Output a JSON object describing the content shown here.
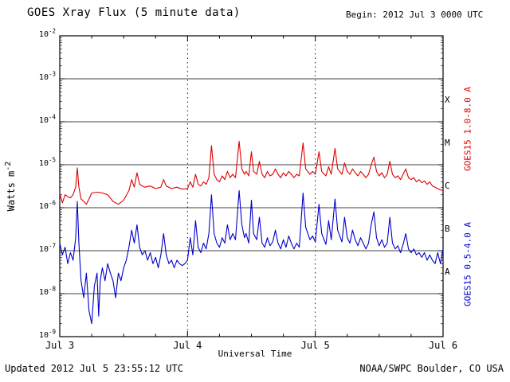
{
  "header": {
    "title": "GOES Xray Flux (5 minute data)",
    "begin": "Begin: 2012 Jul 3 0000 UTC"
  },
  "footer": {
    "updated": "Updated 2012 Jul 5 23:55:12 UTC",
    "credit": "NOAA/SWPC Boulder, CO USA"
  },
  "axes": {
    "xlabel": "Universal Time",
    "ylabel_main": "Watts m",
    "ylabel_exp": "-2"
  },
  "chart_data": {
    "type": "line",
    "title": "GOES Xray Flux (5 minute data)",
    "xlabel": "Universal Time",
    "ylabel": "Watts m^-2",
    "x_unit_hours_since": "2012 Jul 3 0000 UTC",
    "xlim": [
      0,
      72
    ],
    "ylog_exponent_range": [
      -2,
      -9
    ],
    "grid": "horizontal solid per decade, vertical dotted at day boundaries",
    "x_ticks": [
      {
        "t": 0,
        "label": "Jul 3"
      },
      {
        "t": 24,
        "label": "Jul 4"
      },
      {
        "t": 48,
        "label": "Jul 5"
      },
      {
        "t": 72,
        "label": "Jul 6"
      }
    ],
    "y_tick_exponents": [
      -2,
      -3,
      -4,
      -5,
      -6,
      -7,
      -8,
      -9
    ],
    "flare_classes": [
      {
        "label": "X",
        "log_mid": -3.5
      },
      {
        "label": "M",
        "log_mid": -4.5
      },
      {
        "label": "C",
        "log_mid": -5.5
      },
      {
        "label": "B",
        "log_mid": -6.5
      },
      {
        "label": "A",
        "log_mid": -7.5
      }
    ],
    "series": [
      {
        "name": "GOES15 1.0-8.0 A",
        "color": "#dd0000",
        "points": [
          [
            0,
            2.2e-06
          ],
          [
            0.5,
            1.3e-06
          ],
          [
            1,
            2e-06
          ],
          [
            1.5,
            1.8e-06
          ],
          [
            2,
            1.7e-06
          ],
          [
            2.5,
            2e-06
          ],
          [
            3,
            3e-06
          ],
          [
            3.3,
            8.5e-06
          ],
          [
            3.6,
            3e-06
          ],
          [
            4,
            1.6e-06
          ],
          [
            4.5,
            1.4e-06
          ],
          [
            5,
            1.2e-06
          ],
          [
            5.5,
            1.6e-06
          ],
          [
            6,
            2.2e-06
          ],
          [
            7,
            2.3e-06
          ],
          [
            8,
            2.2e-06
          ],
          [
            9,
            2e-06
          ],
          [
            10,
            1.4e-06
          ],
          [
            11,
            1.2e-06
          ],
          [
            12,
            1.5e-06
          ],
          [
            13,
            2.5e-06
          ],
          [
            13.5,
            4.5e-06
          ],
          [
            14,
            3e-06
          ],
          [
            14.5,
            6.5e-06
          ],
          [
            15,
            3.5e-06
          ],
          [
            15.5,
            3.2e-06
          ],
          [
            16,
            3e-06
          ],
          [
            17,
            3.2e-06
          ],
          [
            18,
            2.8e-06
          ],
          [
            19,
            3e-06
          ],
          [
            19.5,
            4.5e-06
          ],
          [
            20,
            3.2e-06
          ],
          [
            21,
            2.8e-06
          ],
          [
            22,
            3e-06
          ],
          [
            23,
            2.7e-06
          ],
          [
            24,
            2.8e-06
          ],
          [
            24.5,
            4e-06
          ],
          [
            25,
            3e-06
          ],
          [
            25.5,
            6e-06
          ],
          [
            26,
            3.5e-06
          ],
          [
            26.5,
            3.2e-06
          ],
          [
            27,
            4e-06
          ],
          [
            27.5,
            3.5e-06
          ],
          [
            28,
            5e-06
          ],
          [
            28.5,
            2.8e-05
          ],
          [
            29,
            6e-06
          ],
          [
            29.5,
            4.5e-06
          ],
          [
            30,
            4e-06
          ],
          [
            30.5,
            5.5e-06
          ],
          [
            31,
            4.5e-06
          ],
          [
            31.5,
            7e-06
          ],
          [
            32,
            5e-06
          ],
          [
            32.5,
            6e-06
          ],
          [
            33,
            5e-06
          ],
          [
            33.7,
            3.5e-05
          ],
          [
            34.2,
            8e-06
          ],
          [
            34.7,
            6e-06
          ],
          [
            35,
            7e-06
          ],
          [
            35.5,
            5.5e-06
          ],
          [
            36,
            2e-05
          ],
          [
            36.4,
            7e-06
          ],
          [
            37,
            6e-06
          ],
          [
            37.5,
            1.2e-05
          ],
          [
            38,
            6e-06
          ],
          [
            38.5,
            5e-06
          ],
          [
            39,
            7e-06
          ],
          [
            39.5,
            5.5e-06
          ],
          [
            40,
            6e-06
          ],
          [
            40.5,
            8e-06
          ],
          [
            41,
            6e-06
          ],
          [
            41.5,
            5e-06
          ],
          [
            42,
            6.5e-06
          ],
          [
            42.5,
            5.5e-06
          ],
          [
            43,
            7e-06
          ],
          [
            43.5,
            6e-06
          ],
          [
            44,
            5e-06
          ],
          [
            44.5,
            6e-06
          ],
          [
            45,
            5.5e-06
          ],
          [
            45.7,
            3.2e-05
          ],
          [
            46.2,
            8e-06
          ],
          [
            47,
            6e-06
          ],
          [
            47.5,
            7e-06
          ],
          [
            48,
            6e-06
          ],
          [
            48.7,
            2e-05
          ],
          [
            49.2,
            7e-06
          ],
          [
            50,
            5.5e-06
          ],
          [
            50.5,
            9e-06
          ],
          [
            51,
            6e-06
          ],
          [
            51.7,
            2.4e-05
          ],
          [
            52.2,
            8e-06
          ],
          [
            53,
            6e-06
          ],
          [
            53.5,
            1.1e-05
          ],
          [
            54,
            7e-06
          ],
          [
            54.5,
            6e-06
          ],
          [
            55,
            8e-06
          ],
          [
            55.5,
            6.5e-06
          ],
          [
            56,
            5.5e-06
          ],
          [
            56.5,
            7e-06
          ],
          [
            57,
            6e-06
          ],
          [
            57.5,
            5e-06
          ],
          [
            58,
            6e-06
          ],
          [
            58.5,
            1e-05
          ],
          [
            59,
            1.5e-05
          ],
          [
            59.5,
            7e-06
          ],
          [
            60,
            5.5e-06
          ],
          [
            60.5,
            6.5e-06
          ],
          [
            61,
            5e-06
          ],
          [
            61.5,
            6e-06
          ],
          [
            62,
            1.2e-05
          ],
          [
            62.5,
            6e-06
          ],
          [
            63,
            5e-06
          ],
          [
            63.5,
            5.5e-06
          ],
          [
            64,
            4.5e-06
          ],
          [
            64.5,
            6e-06
          ],
          [
            65,
            8e-06
          ],
          [
            65.5,
            5e-06
          ],
          [
            66,
            4.5e-06
          ],
          [
            66.5,
            5e-06
          ],
          [
            67,
            4e-06
          ],
          [
            67.5,
            4.5e-06
          ],
          [
            68,
            3.8e-06
          ],
          [
            68.5,
            4.2e-06
          ],
          [
            69,
            3.5e-06
          ],
          [
            69.5,
            4e-06
          ],
          [
            70,
            3.2e-06
          ],
          [
            70.5,
            3e-06
          ],
          [
            71,
            2.8e-06
          ],
          [
            71.5,
            2.6e-06
          ],
          [
            72,
            2.5e-06
          ]
        ]
      },
      {
        "name": "GOES15 0.5-4.0 A",
        "color": "#0000cc",
        "points": [
          [
            0,
            1.5e-07
          ],
          [
            0.5,
            8e-08
          ],
          [
            1,
            1.2e-07
          ],
          [
            1.5,
            5e-08
          ],
          [
            2,
            9e-08
          ],
          [
            2.5,
            6e-08
          ],
          [
            3,
            2e-07
          ],
          [
            3.3,
            1.4e-06
          ],
          [
            3.6,
            1.5e-07
          ],
          [
            4,
            2e-08
          ],
          [
            4.5,
            8e-09
          ],
          [
            5,
            3e-08
          ],
          [
            5.5,
            4e-09
          ],
          [
            6,
            2e-09
          ],
          [
            6.5,
            1.5e-08
          ],
          [
            7,
            3e-08
          ],
          [
            7.3,
            3e-09
          ],
          [
            7.6,
            2e-08
          ],
          [
            8,
            4e-08
          ],
          [
            8.5,
            2e-08
          ],
          [
            9,
            5e-08
          ],
          [
            9.5,
            3e-08
          ],
          [
            10,
            2e-08
          ],
          [
            10.5,
            8e-09
          ],
          [
            11,
            3e-08
          ],
          [
            11.5,
            2e-08
          ],
          [
            12,
            4e-08
          ],
          [
            12.5,
            6e-08
          ],
          [
            13,
            1.2e-07
          ],
          [
            13.5,
            3e-07
          ],
          [
            14,
            1.5e-07
          ],
          [
            14.5,
            4e-07
          ],
          [
            15,
            1.2e-07
          ],
          [
            15.5,
            8e-08
          ],
          [
            16,
            1e-07
          ],
          [
            16.5,
            6e-08
          ],
          [
            17,
            9e-08
          ],
          [
            17.5,
            5e-08
          ],
          [
            18,
            7e-08
          ],
          [
            18.5,
            4e-08
          ],
          [
            19,
            8e-08
          ],
          [
            19.5,
            2.5e-07
          ],
          [
            20,
            8e-08
          ],
          [
            20.5,
            5e-08
          ],
          [
            21,
            6e-08
          ],
          [
            21.5,
            4e-08
          ],
          [
            22,
            6e-08
          ],
          [
            22.5,
            5e-08
          ],
          [
            23,
            4.5e-08
          ],
          [
            23.5,
            5e-08
          ],
          [
            24,
            6e-08
          ],
          [
            24.5,
            2e-07
          ],
          [
            25,
            8e-08
          ],
          [
            25.5,
            5e-07
          ],
          [
            26,
            1.2e-07
          ],
          [
            26.5,
            9e-08
          ],
          [
            27,
            1.5e-07
          ],
          [
            27.5,
            1.1e-07
          ],
          [
            28,
            2.5e-07
          ],
          [
            28.5,
            2e-06
          ],
          [
            29,
            2.5e-07
          ],
          [
            29.5,
            1.5e-07
          ],
          [
            30,
            1.2e-07
          ],
          [
            30.5,
            2e-07
          ],
          [
            31,
            1.5e-07
          ],
          [
            31.5,
            4e-07
          ],
          [
            32,
            1.8e-07
          ],
          [
            32.5,
            2.5e-07
          ],
          [
            33,
            1.8e-07
          ],
          [
            33.7,
            2.5e-06
          ],
          [
            34.2,
            4e-07
          ],
          [
            34.7,
            2e-07
          ],
          [
            35,
            2.5e-07
          ],
          [
            35.5,
            1.5e-07
          ],
          [
            36,
            1.5e-06
          ],
          [
            36.4,
            2.5e-07
          ],
          [
            37,
            1.8e-07
          ],
          [
            37.5,
            6e-07
          ],
          [
            38,
            1.5e-07
          ],
          [
            38.5,
            1.2e-07
          ],
          [
            39,
            2e-07
          ],
          [
            39.5,
            1.3e-07
          ],
          [
            40,
            1.6e-07
          ],
          [
            40.5,
            3e-07
          ],
          [
            41,
            1.5e-07
          ],
          [
            41.5,
            1.1e-07
          ],
          [
            42,
            1.8e-07
          ],
          [
            42.5,
            1.2e-07
          ],
          [
            43,
            2.2e-07
          ],
          [
            43.5,
            1.5e-07
          ],
          [
            44,
            1.1e-07
          ],
          [
            44.5,
            1.5e-07
          ],
          [
            45,
            1.2e-07
          ],
          [
            45.7,
            2.2e-06
          ],
          [
            46.2,
            3.5e-07
          ],
          [
            47,
            1.8e-07
          ],
          [
            47.5,
            2.2e-07
          ],
          [
            48,
            1.6e-07
          ],
          [
            48.7,
            1.2e-06
          ],
          [
            49.2,
            2.5e-07
          ],
          [
            50,
            1.4e-07
          ],
          [
            50.5,
            5e-07
          ],
          [
            51,
            1.8e-07
          ],
          [
            51.7,
            1.6e-06
          ],
          [
            52.2,
            3e-07
          ],
          [
            53,
            1.6e-07
          ],
          [
            53.5,
            6e-07
          ],
          [
            54,
            2e-07
          ],
          [
            54.5,
            1.5e-07
          ],
          [
            55,
            3e-07
          ],
          [
            55.5,
            1.8e-07
          ],
          [
            56,
            1.3e-07
          ],
          [
            56.5,
            2e-07
          ],
          [
            57,
            1.5e-07
          ],
          [
            57.5,
            1.1e-07
          ],
          [
            58,
            1.5e-07
          ],
          [
            58.5,
            4e-07
          ],
          [
            59,
            8e-07
          ],
          [
            59.5,
            2e-07
          ],
          [
            60,
            1.3e-07
          ],
          [
            60.5,
            1.8e-07
          ],
          [
            61,
            1.2e-07
          ],
          [
            61.5,
            1.5e-07
          ],
          [
            62,
            6e-07
          ],
          [
            62.5,
            1.5e-07
          ],
          [
            63,
            1.1e-07
          ],
          [
            63.5,
            1.3e-07
          ],
          [
            64,
            9e-08
          ],
          [
            64.5,
            1.4e-07
          ],
          [
            65,
            2.5e-07
          ],
          [
            65.5,
            1.1e-07
          ],
          [
            66,
            9e-08
          ],
          [
            66.5,
            1.1e-07
          ],
          [
            67,
            8e-08
          ],
          [
            67.5,
            9e-08
          ],
          [
            68,
            7e-08
          ],
          [
            68.5,
            9e-08
          ],
          [
            69,
            6e-08
          ],
          [
            69.5,
            8e-08
          ],
          [
            70,
            6e-08
          ],
          [
            70.5,
            5e-08
          ],
          [
            71,
            9e-08
          ],
          [
            71.5,
            5e-08
          ],
          [
            72,
            1.1e-07
          ]
        ]
      }
    ]
  }
}
